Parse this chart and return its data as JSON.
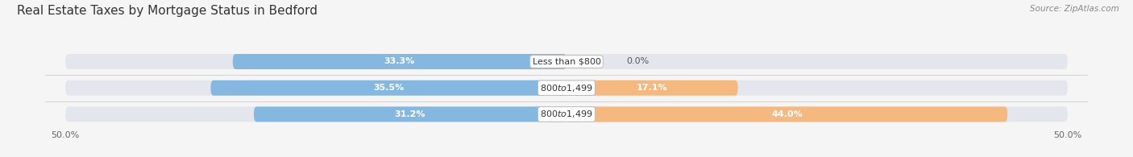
{
  "title": "Real Estate Taxes by Mortgage Status in Bedford",
  "source": "Source: ZipAtlas.com",
  "categories": [
    "Less than $800",
    "$800 to $1,499",
    "$800 to $1,499"
  ],
  "without_mortgage": [
    33.3,
    35.5,
    31.2
  ],
  "with_mortgage": [
    0.0,
    17.1,
    44.0
  ],
  "color_without": "#85b8e0",
  "color_with": "#f5b97f",
  "bg_bar": "#e4e6ee",
  "xlim_half": 50,
  "title_fontsize": 11,
  "label_fontsize": 8,
  "pct_fontsize": 8,
  "bar_height": 0.58,
  "figsize": [
    14.06,
    1.95
  ],
  "dpi": 100,
  "bg_color": "#f5f5f5"
}
